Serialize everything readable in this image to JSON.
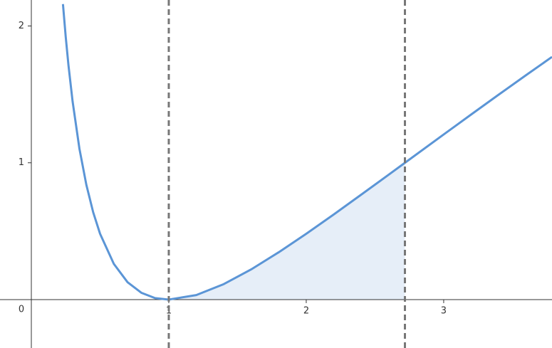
{
  "chart_data": {
    "type": "line",
    "x": [
      0.23,
      0.25,
      0.27,
      0.3,
      0.35,
      0.4,
      0.45,
      0.5,
      0.6,
      0.7,
      0.8,
      0.9,
      1,
      1.2,
      1.4,
      1.6,
      1.8,
      2,
      2.2,
      2.4,
      2.6,
      2.718,
      3,
      3.2,
      3.4,
      3.6,
      3.788
    ],
    "series": [
      {
        "color": "#5b95d6",
        "values": [
          2.16,
          1.922,
          1.714,
          1.45,
          1.102,
          0.84,
          0.638,
          0.481,
          0.261,
          0.127,
          0.05,
          0.011,
          0,
          0.033,
          0.113,
          0.221,
          0.346,
          0.481,
          0.622,
          0.767,
          0.913,
          1.0,
          1.207,
          1.353,
          1.498,
          1.641,
          1.774
        ]
      }
    ],
    "vlines": [
      1,
      2.718
    ],
    "shade_color": "#e6eef8",
    "xlim": [
      -0.228,
      3.788
    ],
    "ylim": [
      -0.354,
      2.19
    ],
    "xticks": [
      0,
      1,
      2,
      3
    ],
    "yticks": [
      1,
      2
    ]
  }
}
